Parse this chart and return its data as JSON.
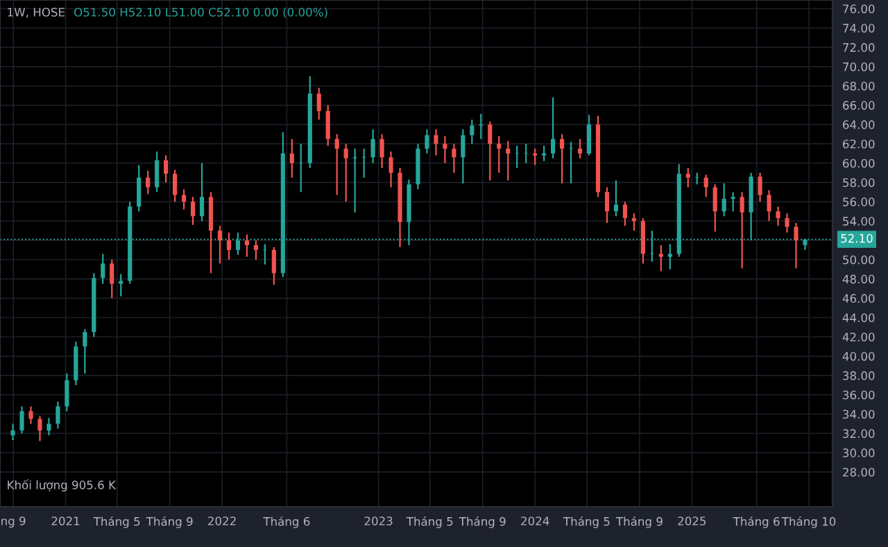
{
  "chart_data": {
    "type": "candlestick",
    "title": "1W, HOSE",
    "subtitle": "O51.50 H52.10 L51.00 C52.10 0.00 (0.00%)",
    "annotations": [
      "Khối lượng 905.6 K"
    ],
    "x": [
      "2020-08-31",
      "2020-09-21",
      "2020-10-12",
      "2020-11-02",
      "2020-11-23",
      "2020-12-14",
      "2021-01-04",
      "2021-01-25",
      "2021-02-15",
      "2021-03-08",
      "2021-03-29",
      "2021-04-19",
      "2021-05-10",
      "2021-05-31",
      "2021-06-21",
      "2021-07-12",
      "2021-08-02",
      "2021-08-23",
      "2021-09-13",
      "2021-10-04",
      "2021-10-25",
      "2021-11-15",
      "2021-12-06",
      "2021-12-27",
      "2022-01-17",
      "2022-02-07",
      "2022-02-28",
      "2022-03-21",
      "2022-04-11",
      "2022-05-02",
      "2022-05-23",
      "2022-06-13",
      "2022-07-04",
      "2022-07-25",
      "2022-08-15",
      "2022-09-05",
      "2022-09-26",
      "2022-10-17",
      "2022-11-07",
      "2022-11-28",
      "2022-12-19",
      "2023-01-09",
      "2023-01-30",
      "2023-02-20",
      "2023-03-13",
      "2023-04-03",
      "2023-04-24",
      "2023-05-15",
      "2023-06-05",
      "2023-06-26",
      "2023-07-17",
      "2023-08-07",
      "2023-08-28",
      "2023-09-18",
      "2023-10-09",
      "2023-10-30",
      "2023-11-20",
      "2023-12-11",
      "2024-01-01",
      "2024-01-22",
      "2024-02-12",
      "2024-03-04",
      "2024-03-25",
      "2024-04-15",
      "2024-05-06",
      "2024-05-27",
      "2024-06-17",
      "2024-07-08",
      "2024-07-29",
      "2024-08-19",
      "2024-09-09",
      "2024-09-30",
      "2024-10-21",
      "2024-11-11",
      "2024-12-02",
      "2024-12-23",
      "2025-01-13",
      "2025-02-03",
      "2025-02-24",
      "2025-03-17",
      "2025-04-07",
      "2025-04-28",
      "2025-05-19",
      "2025-06-09",
      "2025-06-30",
      "2025-07-21",
      "2025-08-11",
      "2025-09-01",
      "2025-09-22"
    ],
    "ohlc": [
      [
        31.8,
        33.0,
        31.3,
        32.3
      ],
      [
        32.3,
        34.8,
        32.0,
        34.3
      ],
      [
        34.3,
        34.8,
        33.0,
        33.5
      ],
      [
        33.5,
        33.8,
        31.2,
        32.3
      ],
      [
        32.3,
        33.6,
        31.8,
        33.0
      ],
      [
        33.0,
        35.3,
        32.5,
        34.8
      ],
      [
        34.8,
        38.2,
        34.3,
        37.5
      ],
      [
        37.5,
        41.5,
        37.0,
        41.0
      ],
      [
        41.0,
        42.8,
        38.2,
        42.5
      ],
      [
        42.5,
        48.6,
        42.0,
        48.1
      ],
      [
        48.1,
        50.6,
        47.5,
        49.6
      ],
      [
        49.6,
        50.0,
        46.0,
        47.5
      ],
      [
        47.5,
        48.5,
        46.2,
        47.8
      ],
      [
        47.8,
        56.0,
        47.5,
        55.5
      ],
      [
        55.5,
        59.8,
        55.0,
        58.5
      ],
      [
        58.5,
        59.2,
        56.8,
        57.5
      ],
      [
        57.5,
        61.2,
        57.0,
        60.3
      ],
      [
        60.3,
        60.8,
        58.0,
        58.9
      ],
      [
        58.9,
        59.3,
        56.0,
        56.7
      ],
      [
        56.7,
        57.3,
        55.2,
        56.0
      ],
      [
        56.0,
        56.5,
        53.6,
        54.5
      ],
      [
        54.5,
        60.0,
        54.0,
        56.5
      ],
      [
        56.5,
        57.0,
        48.6,
        53.0
      ],
      [
        53.0,
        53.5,
        49.6,
        52.0
      ],
      [
        52.0,
        52.8,
        50.0,
        51.0
      ],
      [
        51.0,
        52.8,
        50.5,
        52.0
      ],
      [
        52.0,
        52.6,
        50.3,
        51.5
      ],
      [
        51.5,
        52.0,
        50.0,
        51.0
      ],
      [
        51.0,
        51.6,
        49.5,
        51.0
      ],
      [
        51.0,
        51.3,
        47.4,
        48.6
      ],
      [
        48.6,
        63.2,
        48.2,
        61.0
      ],
      [
        61.0,
        62.5,
        58.5,
        60.0
      ],
      [
        60.0,
        62.0,
        57.0,
        60.0
      ],
      [
        60.0,
        69.0,
        59.5,
        67.2
      ],
      [
        67.2,
        67.8,
        64.5,
        65.4
      ],
      [
        65.4,
        66.0,
        61.8,
        62.5
      ],
      [
        62.5,
        63.0,
        56.7,
        61.5
      ],
      [
        61.5,
        62.0,
        56.0,
        60.5
      ],
      [
        60.5,
        61.5,
        54.9,
        60.6
      ],
      [
        60.6,
        61.5,
        58.5,
        60.6
      ],
      [
        60.6,
        63.5,
        60.0,
        62.5
      ],
      [
        62.5,
        63.0,
        59.5,
        60.6
      ],
      [
        60.6,
        61.2,
        57.5,
        59.0
      ],
      [
        59.0,
        59.5,
        51.3,
        53.9
      ],
      [
        53.9,
        58.3,
        51.5,
        57.8
      ],
      [
        57.8,
        62.0,
        57.3,
        61.5
      ],
      [
        61.5,
        63.5,
        61.0,
        62.9
      ],
      [
        62.9,
        63.5,
        60.8,
        62.0
      ],
      [
        62.0,
        62.8,
        60.0,
        61.5
      ],
      [
        61.5,
        62.0,
        59.0,
        60.6
      ],
      [
        60.6,
        63.5,
        57.9,
        62.9
      ],
      [
        62.9,
        64.5,
        62.0,
        63.9
      ],
      [
        63.9,
        65.1,
        62.5,
        64.0
      ],
      [
        64.0,
        64.3,
        58.2,
        62.0
      ],
      [
        62.0,
        62.8,
        59.0,
        61.5
      ],
      [
        61.5,
        62.3,
        58.2,
        61.0
      ],
      [
        61.0,
        61.8,
        59.5,
        61.0
      ],
      [
        61.0,
        62.0,
        60.0,
        61.0
      ],
      [
        61.0,
        61.5,
        59.8,
        60.8
      ],
      [
        60.8,
        61.8,
        60.2,
        61.0
      ],
      [
        61.0,
        66.8,
        60.5,
        62.5
      ],
      [
        62.5,
        63.0,
        57.9,
        61.5
      ],
      [
        61.5,
        62.2,
        57.9,
        61.5
      ],
      [
        61.5,
        62.5,
        60.5,
        61.0
      ],
      [
        61.0,
        65.0,
        60.8,
        64.0
      ],
      [
        64.0,
        64.9,
        56.5,
        57.0
      ],
      [
        57.0,
        57.5,
        53.8,
        55.0
      ],
      [
        55.0,
        58.2,
        54.5,
        55.7
      ],
      [
        55.7,
        56.0,
        53.5,
        54.3
      ],
      [
        54.3,
        54.8,
        53.0,
        54.0
      ],
      [
        54.0,
        54.3,
        49.6,
        50.6
      ],
      [
        50.6,
        53.0,
        49.8,
        50.6
      ],
      [
        50.6,
        51.5,
        48.8,
        50.3
      ],
      [
        50.3,
        51.6,
        49.0,
        50.6
      ],
      [
        50.6,
        59.9,
        50.3,
        58.9
      ],
      [
        58.9,
        59.5,
        57.5,
        58.5
      ],
      [
        58.5,
        59.0,
        57.8,
        58.5
      ],
      [
        58.5,
        58.8,
        56.5,
        57.5
      ],
      [
        57.5,
        57.8,
        52.9,
        55.0
      ],
      [
        55.0,
        57.9,
        54.5,
        56.3
      ],
      [
        56.3,
        57.0,
        55.0,
        56.5
      ],
      [
        56.5,
        57.0,
        49.1,
        54.9
      ],
      [
        54.9,
        59.0,
        52.0,
        58.6
      ],
      [
        58.6,
        59.0,
        56.0,
        56.7
      ],
      [
        56.7,
        57.2,
        54.0,
        55.0
      ],
      [
        55.0,
        55.5,
        53.5,
        54.3
      ],
      [
        54.3,
        54.8,
        52.8,
        53.4
      ],
      [
        53.4,
        53.8,
        49.1,
        52.0
      ],
      [
        51.5,
        52.1,
        51.0,
        52.1
      ]
    ],
    "xlim": [
      "2020-08-01",
      "2025-11-25"
    ],
    "xticks": [
      {
        "value": "2020-09-01",
        "label": "ng 9"
      },
      {
        "value": "2021-01-01",
        "label": "2021"
      },
      {
        "value": "2021-05-01",
        "label": "Tháng 5"
      },
      {
        "value": "2021-09-01",
        "label": "Tháng 9"
      },
      {
        "value": "2022-01-01",
        "label": "2022"
      },
      {
        "value": "2022-06-01",
        "label": "Tháng 6"
      },
      {
        "value": "2023-01-01",
        "label": "2023"
      },
      {
        "value": "2023-05-01",
        "label": "Tháng 5"
      },
      {
        "value": "2023-09-01",
        "label": "Tháng 9"
      },
      {
        "value": "2024-01-01",
        "label": "2024"
      },
      {
        "value": "2024-05-01",
        "label": "Tháng 5"
      },
      {
        "value": "2024-09-01",
        "label": "Tháng 9"
      },
      {
        "value": "2025-01-01",
        "label": "2025"
      },
      {
        "value": "2025-06-01",
        "label": "Tháng 6"
      },
      {
        "value": "2025-10-01",
        "label": "Tháng 10"
      }
    ],
    "ylim": [
      24.4,
      76.9
    ],
    "yticks": [
      {
        "value": 28,
        "label": "28.00"
      },
      {
        "value": 30,
        "label": "30.00"
      },
      {
        "value": 32,
        "label": "32.00"
      },
      {
        "value": 34,
        "label": "34.00"
      },
      {
        "value": 36,
        "label": "36.00"
      },
      {
        "value": 38,
        "label": "38.00"
      },
      {
        "value": 40,
        "label": "40.00"
      },
      {
        "value": 42,
        "label": "42.00"
      },
      {
        "value": 44,
        "label": "44.00"
      },
      {
        "value": 46,
        "label": "46.00"
      },
      {
        "value": 48,
        "label": "48.00"
      },
      {
        "value": 50,
        "label": "50.00"
      },
      {
        "value": 52,
        "label": null
      },
      {
        "value": 54,
        "label": "54.00"
      },
      {
        "value": 56,
        "label": "56.00"
      },
      {
        "value": 58,
        "label": "58.00"
      },
      {
        "value": 60,
        "label": "60.00"
      },
      {
        "value": 62,
        "label": "62.00"
      },
      {
        "value": 64,
        "label": "64.00"
      },
      {
        "value": 66,
        "label": "66.00"
      },
      {
        "value": 68,
        "label": "68.00"
      },
      {
        "value": 70,
        "label": "70.00"
      },
      {
        "value": 72,
        "label": "72.00"
      },
      {
        "value": 74,
        "label": "74.00"
      },
      {
        "value": 76,
        "label": "76.00"
      }
    ],
    "ref_lines": [
      {
        "axis": "y",
        "value": 52.1,
        "label": "52.10",
        "color": "#26a69a",
        "line_style": "dotted"
      }
    ],
    "grid": true,
    "legend": false
  }
}
